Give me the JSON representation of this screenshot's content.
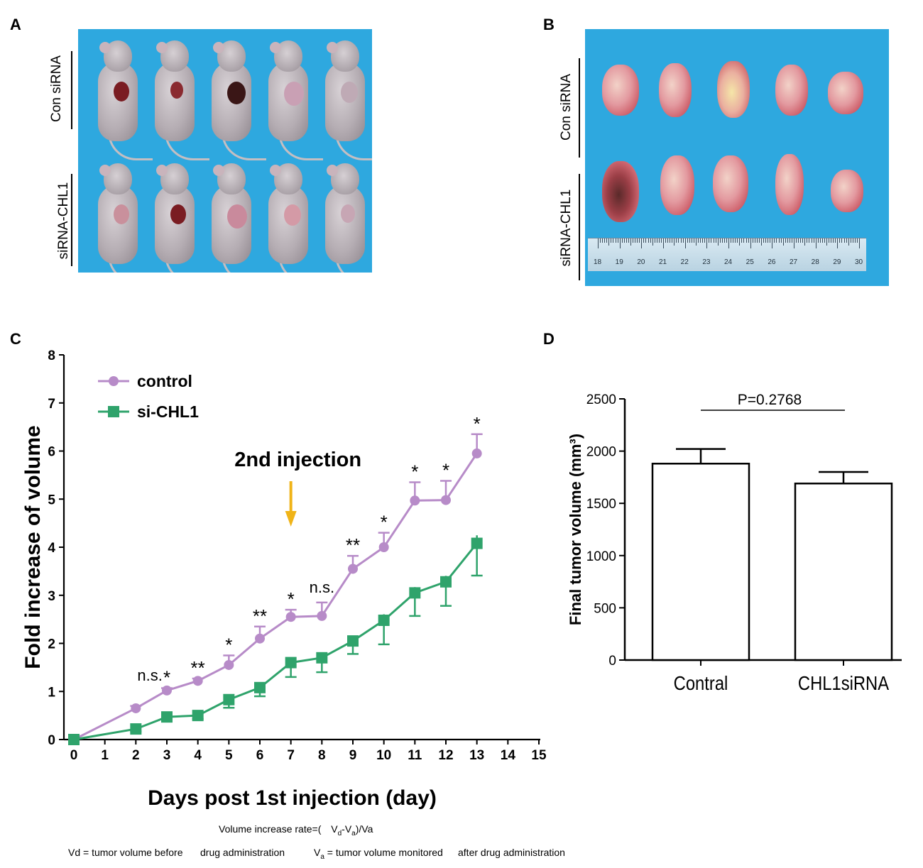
{
  "panels": {
    "A": {
      "letter": "A",
      "row_labels": [
        "Con siRNA",
        "siRNA-CHL1"
      ]
    },
    "B": {
      "letter": "B",
      "row_labels": [
        "Con siRNA",
        "siRNA-CHL1"
      ],
      "ruler_numbers": [
        "18",
        "19",
        "20",
        "21",
        "22",
        "23",
        "24",
        "25",
        "26",
        "27",
        "28",
        "29",
        "30"
      ]
    },
    "C": {
      "letter": "C"
    },
    "D": {
      "letter": "D"
    }
  },
  "colors": {
    "photo_bg": "#2ea8df",
    "control": "#b78bc8",
    "si_chl1": "#2fa36b",
    "arrow": "#f0b418",
    "bar_fill": "#ffffff",
    "axis": "#000000"
  },
  "chart_data": [
    {
      "panel": "C",
      "type": "line",
      "xlabel": "Days post 1st injection (day)",
      "ylabel": "Fold increase of volume",
      "xlim": [
        0,
        15
      ],
      "ylim": [
        0,
        8
      ],
      "x_ticks": [
        0,
        1,
        2,
        3,
        4,
        5,
        6,
        7,
        8,
        9,
        10,
        11,
        12,
        13,
        14,
        15
      ],
      "y_ticks": [
        0,
        1,
        2,
        3,
        4,
        5,
        6,
        7,
        8
      ],
      "legend": "top-left",
      "series": [
        {
          "name": "control",
          "color": "#b78bc8",
          "marker": "circle",
          "x": [
            0,
            2,
            3,
            4,
            5,
            6,
            7,
            8,
            9,
            10,
            11,
            12,
            13
          ],
          "y": [
            0,
            0.65,
            1.02,
            1.22,
            1.55,
            2.1,
            2.55,
            2.57,
            3.55,
            4.0,
            4.97,
            4.98,
            5.95
          ],
          "err": [
            0,
            0.05,
            0.05,
            0.05,
            0.2,
            0.25,
            0.15,
            0.28,
            0.27,
            0.3,
            0.38,
            0.4,
            0.4
          ]
        },
        {
          "name": "si-CHL1",
          "color": "#2fa36b",
          "marker": "square",
          "x": [
            0,
            2,
            3,
            4,
            5,
            6,
            7,
            8,
            9,
            10,
            11,
            12,
            13
          ],
          "y": [
            0,
            0.22,
            0.47,
            0.5,
            0.83,
            1.08,
            1.6,
            1.7,
            2.05,
            2.48,
            3.05,
            3.28,
            4.08
          ],
          "err": [
            0,
            0.05,
            0.07,
            0.07,
            0.17,
            0.18,
            0.3,
            0.3,
            0.27,
            0.5,
            0.48,
            0.5,
            0.67
          ]
        }
      ],
      "significance": [
        {
          "x": 2.5,
          "label": "n.s."
        },
        {
          "x": 3,
          "label": "*"
        },
        {
          "x": 4,
          "label": "**"
        },
        {
          "x": 5,
          "label": "*"
        },
        {
          "x": 6,
          "label": "**"
        },
        {
          "x": 7,
          "label": "*"
        },
        {
          "x": 8,
          "label": "n.s."
        },
        {
          "x": 9,
          "label": "**"
        },
        {
          "x": 10,
          "label": "*"
        },
        {
          "x": 11,
          "label": "*"
        },
        {
          "x": 12,
          "label": "*"
        },
        {
          "x": 13,
          "label": "*"
        }
      ],
      "annotation": {
        "text": "2nd injection",
        "x": 7
      }
    },
    {
      "panel": "D",
      "type": "bar",
      "ylabel": "Final tumor volume (mm³)",
      "categories": [
        "Contral",
        "CHL1siRNA"
      ],
      "values": [
        1880,
        1690
      ],
      "errors": [
        140,
        110
      ],
      "ylim": [
        0,
        2500
      ],
      "y_ticks": [
        0,
        500,
        1000,
        1500,
        2000,
        2500
      ],
      "comparison": {
        "text": "P=0.2768"
      }
    }
  ],
  "formula": {
    "rate_label": "Volume increase rate=(",
    "rate_expr_vd": "V",
    "rate_expr_vd_sub": "d",
    "rate_expr_mid": "-V",
    "rate_expr_va_sub": "a",
    "rate_expr_end": ")/Va",
    "vd_symbol": "Vd",
    "vd_def": "= tumor volume before",
    "vd_def2": "drug administration",
    "va_symbol": "V",
    "va_sub": "a",
    "va_def": "= tumor volume monitored",
    "va_def2": "after drug administration"
  }
}
